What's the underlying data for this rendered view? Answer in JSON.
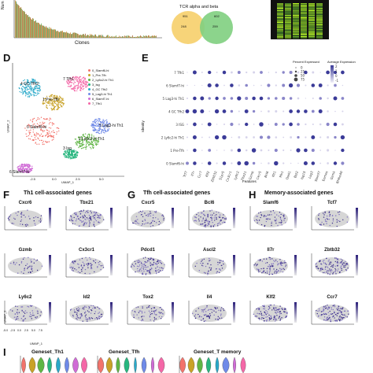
{
  "panel_top": {
    "ylabel_fragment": "Num",
    "xlabel": "Clones",
    "venn_title": "TCR alpha and beta",
    "venn_left_top": "951",
    "venn_left_mid": "248",
    "venn_right_top": "602",
    "venn_right_mid": "259",
    "colors": {
      "venn_left": "#f6cf6a",
      "venn_right": "#7fcf80"
    }
  },
  "panel_D": {
    "letter": "D",
    "xlabel": "UMAP_1",
    "ylabel": "UMAP_2",
    "legend": [
      {
        "label": "0_Slamf6-hi",
        "color": "#f2736b"
      },
      {
        "label": "1_Pre-Tfh",
        "color": "#c9a227"
      },
      {
        "label": "2_Ly6c2-hi Th1",
        "color": "#5fb544"
      },
      {
        "label": "3_Isg",
        "color": "#28b67f"
      },
      {
        "label": "4_GC Tfh2",
        "color": "#29a9c9"
      },
      {
        "label": "5_Lag3-hi Th1",
        "color": "#6f8ae8"
      },
      {
        "label": "6_Slamf7-hi",
        "color": "#d06bd6"
      },
      {
        "label": "7_Tfh1",
        "color": "#f467a7"
      }
    ],
    "cluster_labels": [
      "4 GC Tfh2",
      "7 Tfh1",
      "1 Pre-Tfh",
      "0 Slamf6-hi",
      "5 Lag3-hi Th1",
      "2 Ly6c2-hi Th1",
      "3 Isg",
      "6 Slamf7-hi"
    ],
    "x_ticks": [
      "-2.5",
      "0.0",
      "2.5",
      "5.0"
    ]
  },
  "panel_E": {
    "letter": "E",
    "ylabel": "Identity",
    "xlabel": "Features",
    "legend_pct_title": "Percent Expressed",
    "legend_pct": [
      "0",
      "25",
      "50",
      "75"
    ],
    "legend_avg_title": "Average Expression",
    "legend_avg": [
      "2",
      "1",
      "0",
      "-1"
    ],
    "rows": [
      "7 Tfh1",
      "6 Slamf7-hi",
      "5 Lag3-hi Th1",
      "4 GC Tfh2",
      "3 ISG",
      "2 Ly6c2-hi Th1",
      "1 Pre-Tfh",
      "0 Slamf6-hi"
    ],
    "features": [
      "Tcf7",
      "Il7r",
      "Ccr7",
      "Klf2",
      "Zbtb32",
      "S1pr5",
      "Cx3cr1",
      "Ly6c2",
      "Tbx21",
      "Gzmb",
      "Cxcr5",
      "Bcl6",
      "Ifit1",
      "Mx1",
      "Oasl1",
      "Bst2",
      "Isg15",
      "Lag3",
      "Slamf7",
      "Eomes",
      "Gzmk",
      "Bhlhe40"
    ]
  },
  "panel_F": {
    "letter": "F",
    "title": "Th1 cell-associated genes",
    "genes": [
      "Cxcr6",
      "Tbx21",
      "Gzmb",
      "Cx3cr1",
      "Ly6c2",
      "Id2"
    ],
    "x_ticks": [
      "-5.0",
      "-2.5",
      "0.0",
      "2.5",
      "5.0",
      "7.5"
    ],
    "xlabel": "UMAP_1",
    "ylabel": "UMAP_2"
  },
  "panel_G": {
    "letter": "G",
    "title": "Tfh cell-associated genes",
    "genes": [
      "Cxcr5",
      "Bcl6",
      "Pdcd1",
      "Ascl2",
      "Tox2",
      "Il4"
    ]
  },
  "panel_H": {
    "letter": "H",
    "title": "Memory-associated genes",
    "genes": [
      "Slamf6",
      "Tcf7",
      "Il7r",
      "Zbtb32",
      "Klf2",
      "Ccr7"
    ]
  },
  "panel_I": {
    "letter": "I",
    "titles": [
      "Geneset_Th1",
      "Geneset_Tfh",
      "Geneset_T memory"
    ]
  }
}
